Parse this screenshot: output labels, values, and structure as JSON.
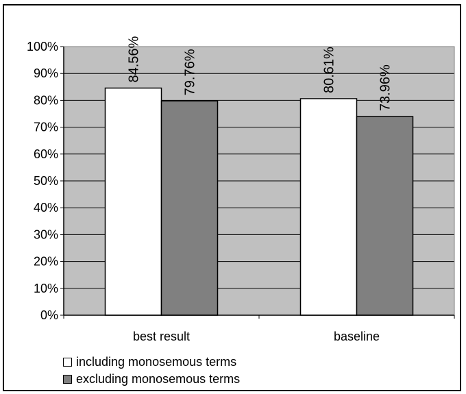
{
  "chart_data": {
    "type": "bar",
    "categories": [
      "best result",
      "baseline"
    ],
    "series": [
      {
        "name": "including monosemous terms",
        "values": [
          84.56,
          80.61
        ],
        "labels": [
          "84.56%",
          "80.61%"
        ],
        "color": "#ffffff"
      },
      {
        "name": "excluding monosemous terms",
        "values": [
          79.76,
          73.96
        ],
        "labels": [
          "79.76%",
          "73.96%"
        ],
        "color": "#808080"
      }
    ],
    "ylim": [
      0,
      100
    ],
    "yticks": [
      "0%",
      "10%",
      "20%",
      "30%",
      "40%",
      "50%",
      "60%",
      "70%",
      "80%",
      "90%",
      "100%"
    ],
    "grid": true,
    "legend_position": "bottom-left",
    "plot_background": "#c0c0c0"
  }
}
